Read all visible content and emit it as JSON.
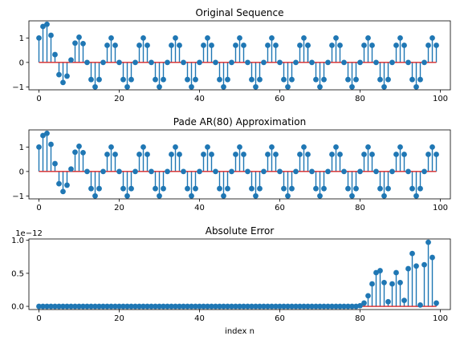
{
  "chart_data": [
    {
      "type": "stem",
      "title": "Original Sequence",
      "xlabel": "",
      "ylabel": "",
      "xlim": [
        -2.5,
        102.5
      ],
      "ylim": [
        -1.12,
        1.7
      ],
      "xticks": [
        0,
        20,
        40,
        60,
        80,
        100
      ],
      "xtick_labels": [
        "0",
        "20",
        "40",
        "60",
        "80",
        "100"
      ],
      "yticks": [
        -1,
        0,
        1
      ],
      "ytick_labels": [
        "−1",
        "0",
        "1"
      ],
      "offset_text": "",
      "baseline": 0,
      "grid": false,
      "legend": "none",
      "x": [
        0,
        1,
        2,
        3,
        4,
        5,
        6,
        7,
        8,
        9,
        10,
        11,
        12,
        13,
        14,
        15,
        16,
        17,
        18,
        19,
        20,
        21,
        22,
        23,
        24,
        25,
        26,
        27,
        28,
        29,
        30,
        31,
        32,
        33,
        34,
        35,
        36,
        37,
        38,
        39,
        40,
        41,
        42,
        43,
        44,
        45,
        46,
        47,
        48,
        49,
        50,
        51,
        52,
        53,
        54,
        55,
        56,
        57,
        58,
        59,
        60,
        61,
        62,
        63,
        64,
        65,
        66,
        67,
        67,
        68,
        69,
        70,
        71,
        72,
        73,
        74,
        75,
        76,
        77,
        78,
        79,
        80,
        81,
        82,
        83,
        84,
        85,
        86,
        87,
        88,
        89,
        90,
        91,
        92,
        93,
        94,
        95,
        96,
        97,
        98,
        99
      ],
      "values": [
        1.0,
        1.47,
        1.56,
        1.11,
        0.32,
        -0.5,
        -0.82,
        -0.56,
        0.1,
        0.79,
        1.03,
        0.77,
        0.0,
        -0.7,
        -1.0,
        -0.7,
        0.0,
        0.7,
        1.0,
        0.7,
        0.0,
        -0.7,
        -1.0,
        -0.7,
        0.0,
        0.7,
        1.0,
        0.7,
        0.0,
        -0.7,
        -1.0,
        -0.7,
        0.0,
        0.7,
        1.0,
        0.7,
        0.0,
        -0.7,
        -1.0,
        -0.7,
        0.0,
        0.7,
        1.0,
        0.7,
        0.0,
        -0.7,
        -1.0,
        -0.7,
        0.0,
        0.7,
        1.0,
        0.7,
        0.0,
        -0.7,
        -1.0,
        -0.7,
        0.0,
        0.7,
        1.0,
        0.7,
        0.0,
        -0.7,
        -1.0,
        -0.7,
        0.0,
        0.7,
        1.0,
        0.7,
        0.7,
        0.0,
        -0.7,
        -1.0,
        -0.7,
        0.0,
        0.7,
        1.0,
        0.7,
        0.0,
        -0.7,
        -1.0,
        -0.7,
        0.0,
        0.7,
        1.0,
        0.7,
        0.0,
        -0.7,
        -1.0,
        -0.7,
        0.0,
        0.7,
        1.0,
        0.7,
        0.0,
        -0.7,
        -1.0,
        -0.7,
        0.0,
        0.7,
        1.0,
        0.7
      ]
    },
    {
      "type": "stem",
      "title": "Pade AR(80) Approximation",
      "xlabel": "",
      "ylabel": "",
      "xlim": [
        -2.5,
        102.5
      ],
      "ylim": [
        -1.12,
        1.7
      ],
      "xticks": [
        0,
        20,
        40,
        60,
        80,
        100
      ],
      "xtick_labels": [
        "0",
        "20",
        "40",
        "60",
        "80",
        "100"
      ],
      "yticks": [
        -1,
        0,
        1
      ],
      "ytick_labels": [
        "−1",
        "0",
        "1"
      ],
      "offset_text": "",
      "baseline": 0,
      "grid": false,
      "legend": "none",
      "x": [
        0,
        1,
        2,
        3,
        4,
        5,
        6,
        7,
        8,
        9,
        10,
        11,
        12,
        13,
        14,
        15,
        16,
        17,
        18,
        19,
        20,
        21,
        22,
        23,
        24,
        25,
        26,
        27,
        28,
        29,
        30,
        31,
        32,
        33,
        34,
        35,
        36,
        37,
        38,
        39,
        40,
        41,
        42,
        43,
        44,
        45,
        46,
        47,
        48,
        49,
        50,
        51,
        52,
        53,
        54,
        55,
        56,
        57,
        58,
        59,
        60,
        61,
        62,
        63,
        64,
        65,
        66,
        67,
        68,
        69,
        70,
        71,
        72,
        73,
        74,
        75,
        76,
        77,
        78,
        79,
        80,
        81,
        82,
        83,
        84,
        85,
        86,
        87,
        88,
        89,
        90,
        91,
        92,
        93,
        94,
        95,
        96,
        97,
        98,
        99
      ],
      "values": [
        1.0,
        1.47,
        1.56,
        1.11,
        0.32,
        -0.5,
        -0.82,
        -0.56,
        0.1,
        0.79,
        1.03,
        0.77,
        0.0,
        -0.7,
        -1.0,
        -0.7,
        0.0,
        0.7,
        1.0,
        0.7,
        0.0,
        -0.7,
        -1.0,
        -0.7,
        0.0,
        0.7,
        1.0,
        0.7,
        0.0,
        -0.7,
        -1.0,
        -0.7,
        0.0,
        0.7,
        1.0,
        0.7,
        0.0,
        -0.7,
        -1.0,
        -0.7,
        0.0,
        0.7,
        1.0,
        0.7,
        0.0,
        -0.7,
        -1.0,
        -0.7,
        0.0,
        0.7,
        1.0,
        0.7,
        0.0,
        -0.7,
        -1.0,
        -0.7,
        0.0,
        0.7,
        1.0,
        0.7,
        0.0,
        -0.7,
        -1.0,
        -0.7,
        0.0,
        0.7,
        1.0,
        0.7,
        0.0,
        -0.7,
        -1.0,
        -0.7,
        0.0,
        0.7,
        1.0,
        0.7,
        0.0,
        -0.7,
        -1.0,
        -0.7,
        0.0,
        0.7,
        1.0,
        0.7,
        0.0,
        -0.7,
        -1.0,
        -0.7,
        0.0,
        0.7,
        1.0,
        0.7,
        0.0,
        -0.7,
        -1.0,
        -0.7,
        0.0,
        0.7,
        1.0,
        0.7
      ]
    },
    {
      "type": "stem",
      "title": "Absolute Error",
      "xlabel": "index n",
      "ylabel": "",
      "xlim": [
        -2.5,
        102.5
      ],
      "ylim": [
        -0.048,
        1.02
      ],
      "xticks": [
        0,
        20,
        40,
        60,
        80,
        100
      ],
      "xtick_labels": [
        "0",
        "20",
        "40",
        "60",
        "80",
        "100"
      ],
      "yticks": [
        0,
        0.5,
        1.0
      ],
      "ytick_labels": [
        "0.0",
        "0.5",
        "1.0"
      ],
      "offset_text": "1e−12",
      "baseline": 0,
      "grid": false,
      "legend": "none",
      "x": [
        0,
        1,
        2,
        3,
        4,
        5,
        6,
        7,
        8,
        9,
        10,
        11,
        12,
        13,
        14,
        15,
        16,
        17,
        18,
        19,
        20,
        21,
        22,
        23,
        24,
        25,
        26,
        27,
        28,
        29,
        30,
        31,
        32,
        33,
        34,
        35,
        36,
        37,
        38,
        39,
        40,
        41,
        42,
        43,
        44,
        45,
        46,
        47,
        48,
        49,
        50,
        51,
        52,
        53,
        54,
        55,
        56,
        57,
        58,
        59,
        60,
        61,
        62,
        63,
        64,
        65,
        66,
        67,
        68,
        69,
        70,
        71,
        72,
        73,
        74,
        75,
        76,
        77,
        78,
        79,
        80,
        81,
        82,
        83,
        84,
        85,
        86,
        87,
        88,
        89,
        90,
        91,
        92,
        93,
        94,
        95,
        96,
        97,
        98,
        99
      ],
      "values": [
        0.0,
        0.0,
        0.0,
        0.0,
        0.0,
        0.0,
        0.0,
        0.0,
        0.0,
        0.0,
        0.0,
        0.0,
        0.0,
        0.0,
        0.0,
        0.0,
        0.0,
        0.0,
        0.0,
        0.0,
        0.0,
        0.0,
        0.0,
        0.0,
        0.0,
        0.0,
        0.0,
        0.0,
        0.0,
        0.0,
        0.0,
        0.0,
        0.0,
        0.0,
        0.0,
        0.0,
        0.0,
        0.0,
        0.0,
        0.0,
        0.0,
        0.0,
        0.0,
        0.0,
        0.0,
        0.0,
        0.0,
        0.0,
        0.0,
        0.0,
        0.0,
        0.0,
        0.0,
        0.0,
        0.0,
        0.0,
        0.0,
        0.0,
        0.0,
        0.0,
        0.0,
        0.0,
        0.0,
        0.0,
        0.0,
        0.0,
        0.0,
        0.0,
        0.0,
        0.0,
        0.0,
        0.0,
        0.0,
        0.0,
        0.0,
        0.0,
        0.0,
        0.0,
        0.0,
        0.0,
        0.01,
        0.05,
        0.16,
        0.34,
        0.51,
        0.54,
        0.36,
        0.07,
        0.34,
        0.51,
        0.36,
        0.09,
        0.57,
        0.8,
        0.61,
        0.02,
        0.63,
        0.97,
        0.74,
        0.05
      ]
    }
  ],
  "colors": {
    "stem": "#1f77b4",
    "marker": "#1f77b4",
    "baseline": "#d62728",
    "axes": "#000000"
  }
}
